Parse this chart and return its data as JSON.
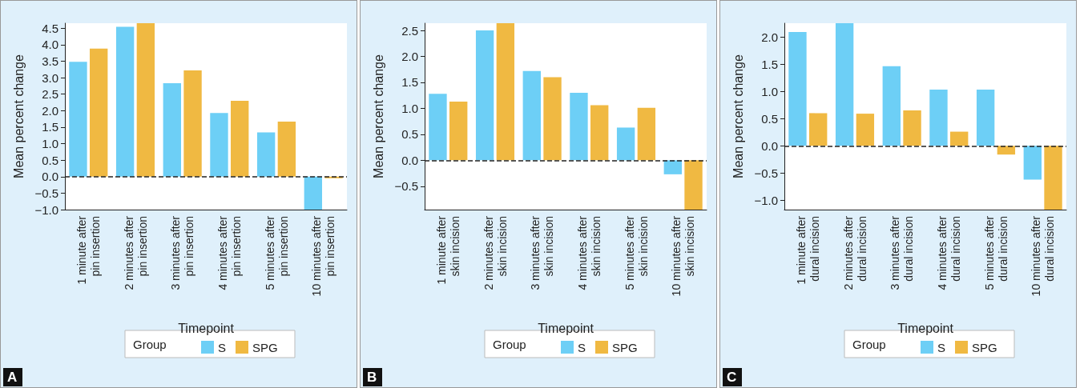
{
  "chart_data": [
    {
      "type": "bar",
      "xlabel": "Timepoint",
      "ylabel": "Mean percent change",
      "legend_title": "Group",
      "legend": "bottom",
      "annotations": [
        "A"
      ],
      "categories": [
        "1 minute after\npin insertion",
        "2 minutes after\npin insertion",
        "3 minutes after\npin insertion",
        "4 minutes after\npin insertion",
        "5 minutes after\npin insertion",
        "10 minutes after\npin insertion"
      ],
      "series": [
        {
          "name": "S",
          "color": "#6dcff6",
          "values": [
            3.48,
            4.54,
            2.83,
            1.93,
            1.34,
            -1.0
          ]
        },
        {
          "name": "SPG",
          "color": "#f0b942",
          "values": [
            3.88,
            4.65,
            3.22,
            2.3,
            1.67,
            -0.05
          ]
        }
      ],
      "ylim": [
        -1.0,
        4.65
      ],
      "yticks": [
        {
          "value": -1,
          "label": "−1.0"
        },
        {
          "value": -0.5,
          "label": "−0.5"
        },
        {
          "value": 0,
          "label": "0.0"
        },
        {
          "value": 0.5,
          "label": "0.5"
        },
        {
          "value": 1,
          "label": "1.0"
        },
        {
          "value": 1.5,
          "label": "1.5"
        },
        {
          "value": 2,
          "label": "2.0"
        },
        {
          "value": 2.5,
          "label": "2.5"
        },
        {
          "value": 3,
          "label": "3.0"
        },
        {
          "value": 3.5,
          "label": "3.5"
        },
        {
          "value": 4,
          "label": "4.0"
        },
        {
          "value": 4.5,
          "label": "4.5"
        }
      ],
      "ref_lines": [
        {
          "axis": "y",
          "value": 0,
          "line_style": "dashed",
          "color": "#222222"
        }
      ]
    },
    {
      "type": "bar",
      "xlabel": "Timepoint",
      "ylabel": "Mean percent change",
      "legend_title": "Group",
      "legend": "bottom",
      "annotations": [
        "B"
      ],
      "categories": [
        "1 minute after\nskin incision",
        "2 minutes after\nskin incision",
        "3 minutes after\nskin incision",
        "4 minutes after\nskin incision",
        "5 minutes after\nskin incision",
        "10 minutes after\nskin incision"
      ],
      "series": [
        {
          "name": "S",
          "color": "#6dcff6",
          "values": [
            1.28,
            2.5,
            1.72,
            1.3,
            0.63,
            -0.27
          ]
        },
        {
          "name": "SPG",
          "color": "#f0b942",
          "values": [
            1.13,
            2.64,
            1.6,
            1.06,
            1.01,
            -0.95
          ]
        }
      ],
      "ylim": [
        -0.95,
        2.64
      ],
      "yticks": [
        {
          "value": -0.5,
          "label": "−0.5"
        },
        {
          "value": 0,
          "label": "0.0"
        },
        {
          "value": 0.5,
          "label": "0.5"
        },
        {
          "value": 1,
          "label": "1.0"
        },
        {
          "value": 1.5,
          "label": "1.5"
        },
        {
          "value": 2,
          "label": "2.0"
        },
        {
          "value": 2.5,
          "label": "2.5"
        }
      ],
      "ref_lines": [
        {
          "axis": "y",
          "value": 0,
          "line_style": "dashed",
          "color": "#222222"
        }
      ]
    },
    {
      "type": "bar",
      "xlabel": "Timepoint",
      "ylabel": "Mean percent change",
      "legend_title": "Group",
      "legend": "bottom",
      "annotations": [
        "C"
      ],
      "categories": [
        "1 minute after\ndural incision",
        "2 minutes after\ndural incision",
        "3 minutes after\ndural incision",
        "4 minutes after\ndural incision",
        "5 minutes after\ndural incision",
        "10 minutes after\ndural incision"
      ],
      "series": [
        {
          "name": "S",
          "color": "#6dcff6",
          "values": [
            2.09,
            2.25,
            1.46,
            1.03,
            1.03,
            -0.62
          ]
        },
        {
          "name": "SPG",
          "color": "#f0b942",
          "values": [
            0.6,
            0.59,
            0.65,
            0.26,
            -0.16,
            -1.17
          ]
        }
      ],
      "ylim": [
        -1.17,
        2.25
      ],
      "yticks": [
        {
          "value": -1,
          "label": "−1.0"
        },
        {
          "value": -0.5,
          "label": "−0.5"
        },
        {
          "value": 0,
          "label": "0.0"
        },
        {
          "value": 0.5,
          "label": "0.5"
        },
        {
          "value": 1,
          "label": "1.0"
        },
        {
          "value": 1.5,
          "label": "1.5"
        },
        {
          "value": 2,
          "label": "2.0"
        }
      ],
      "ref_lines": [
        {
          "axis": "y",
          "value": 0,
          "line_style": "dashed",
          "color": "#222222"
        }
      ]
    }
  ]
}
